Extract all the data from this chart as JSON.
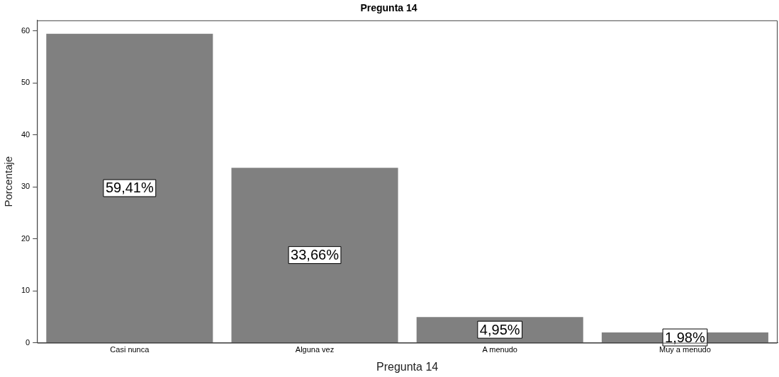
{
  "chart_data": {
    "type": "bar",
    "title": "Pregunta 14",
    "xlabel": "Pregunta 14",
    "ylabel": "Porcentaje",
    "categories": [
      "Casi nunca",
      "Alguna vez",
      "A menudo",
      "Muy a menudo"
    ],
    "values": [
      59.41,
      33.66,
      4.95,
      1.98
    ],
    "value_labels": [
      "59,41%",
      "33,66%",
      "4,95%",
      "1,98%"
    ],
    "color": "#808080",
    "ylim": [
      0,
      62
    ],
    "yticks": [
      0,
      10,
      20,
      30,
      40,
      50,
      60
    ],
    "grid": false,
    "legend": false
  }
}
